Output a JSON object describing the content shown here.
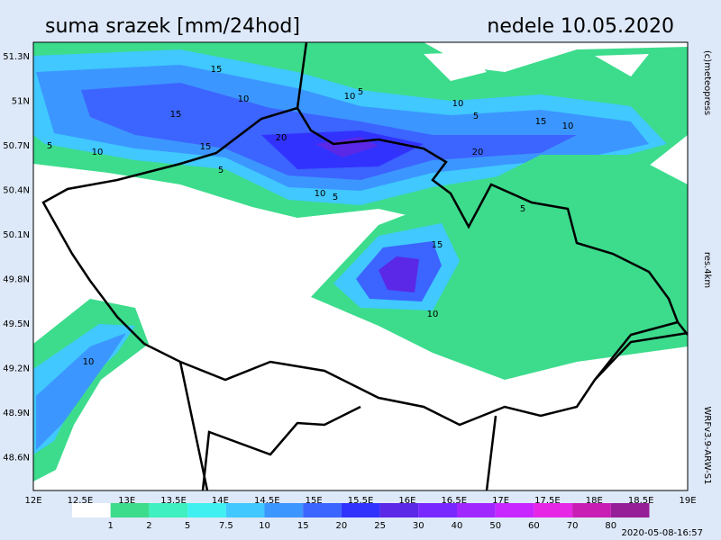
{
  "header": {
    "title": "suma srazek [mm/24hod]",
    "date": "nedele 10.05.2020"
  },
  "axes": {
    "lat_labels": [
      "51.3N",
      "51N",
      "50.7N",
      "50.4N",
      "50.1N",
      "49.8N",
      "49.5N",
      "49.2N",
      "48.9N",
      "48.6N"
    ],
    "lon_labels": [
      "12E",
      "12.5E",
      "13E",
      "13.5E",
      "14E",
      "14.5E",
      "15E",
      "15.5E",
      "16E",
      "16.5E",
      "17E",
      "17.5E",
      "18E",
      "18.5E",
      "19E"
    ]
  },
  "legend": {
    "levels": [
      "1",
      "2",
      "5",
      "7.5",
      "10",
      "15",
      "20",
      "25",
      "30",
      "40",
      "50",
      "60",
      "70",
      "80"
    ],
    "colors": [
      "#ffffff",
      "#3cdc8c",
      "#40f0c0",
      "#40f0f0",
      "#40c8ff",
      "#3c96ff",
      "#3c64ff",
      "#3232ff",
      "#5a28e6",
      "#7828ff",
      "#a028ff",
      "#c828ff",
      "#e628e6",
      "#c81eb4",
      "#961e96"
    ]
  },
  "side": {
    "copyright": "(c)meteopress",
    "resolution": "res.4km",
    "model": "WRFv3.9-ARW-S1"
  },
  "timestamp": "2020-05-08-16:57",
  "contour_labels": [
    "15",
    "10",
    "15",
    "5",
    "10",
    "15",
    "20",
    "10",
    "5",
    "10",
    "5",
    "15",
    "10",
    "20",
    "5",
    "10",
    "5",
    "10",
    "15",
    "5",
    "10"
  ]
}
